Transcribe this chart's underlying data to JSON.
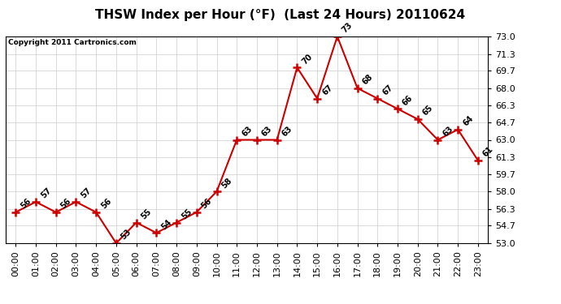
{
  "title": "THSW Index per Hour (°F)  (Last 24 Hours) 20110624",
  "copyright": "Copyright 2011 Cartronics.com",
  "hours": [
    0,
    1,
    2,
    3,
    4,
    5,
    6,
    7,
    8,
    9,
    10,
    11,
    12,
    13,
    14,
    15,
    16,
    17,
    18,
    19,
    20,
    21,
    22,
    23
  ],
  "values": [
    56,
    57,
    56,
    57,
    56,
    53,
    55,
    54,
    55,
    56,
    58,
    63,
    63,
    63,
    70,
    67,
    73,
    68,
    67,
    66,
    65,
    63,
    64,
    61
  ],
  "line_color": "#cc0000",
  "marker_color": "#cc0000",
  "bg_color": "#ffffff",
  "grid_color": "#cccccc",
  "ylim_min": 53.0,
  "ylim_max": 73.0,
  "yticks": [
    53.0,
    54.7,
    56.3,
    58.0,
    59.7,
    61.3,
    63.0,
    64.7,
    66.3,
    68.0,
    69.7,
    71.3,
    73.0
  ],
  "xlabel_labels": [
    "00:00",
    "01:00",
    "02:00",
    "03:00",
    "04:00",
    "05:00",
    "06:00",
    "07:00",
    "08:00",
    "09:00",
    "10:00",
    "11:00",
    "12:00",
    "13:00",
    "14:00",
    "15:00",
    "16:00",
    "17:00",
    "18:00",
    "19:00",
    "20:00",
    "21:00",
    "22:00",
    "23:00"
  ],
  "title_fontsize": 11,
  "tick_fontsize": 8,
  "annot_fontsize": 7
}
